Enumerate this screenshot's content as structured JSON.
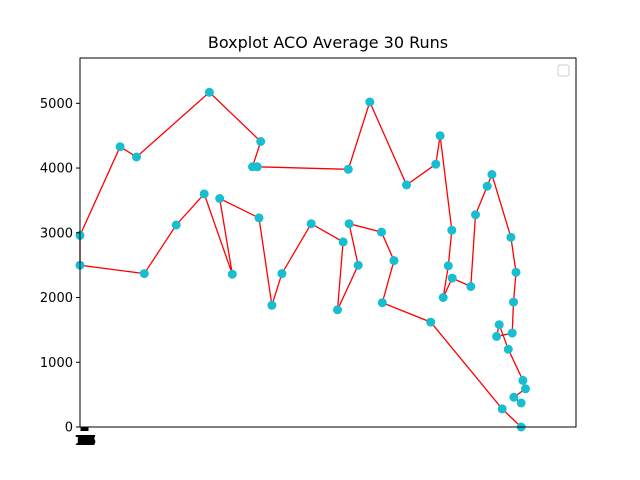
{
  "chart_data": {
    "type": "line",
    "title": "Boxplot ACO Average 30 Runs",
    "xlabel": "",
    "ylabel": "",
    "ylim": [
      0,
      5700
    ],
    "xlim": [
      0,
      11500
    ],
    "yticks": [
      0,
      1000,
      2000,
      3000,
      4000,
      5000
    ],
    "xtick_labels": [
      "0",
      "1",
      "2",
      "3",
      "4",
      "5",
      "6",
      "7",
      "8",
      "9",
      "10",
      "11",
      "12",
      "13",
      "14",
      "15",
      "16",
      "17",
      "18",
      "19",
      "20",
      "21",
      "22",
      "23",
      "24",
      "25",
      "26",
      "27",
      "28",
      "29",
      "30",
      "31",
      "32",
      "33",
      "34",
      "35",
      "36",
      "37",
      "38",
      "39",
      "40",
      "41",
      "42",
      "43",
      "44",
      "45",
      "46",
      "47"
    ],
    "grid": false,
    "legend": {
      "placement": "top-right",
      "entries": []
    },
    "line_color": "#ff0000",
    "marker_color": "#17becf",
    "series": [
      {
        "x": [
          10230,
          9790,
          8130,
          7010,
          7280,
          6990,
          6240,
          6450,
          5970,
          6100,
          5360,
          4680,
          4450,
          4150,
          3240,
          3530,
          2880,
          2230,
          1490,
          0,
          0,
          930,
          1310,
          3000,
          4190,
          4000,
          4110,
          6220,
          6720,
          7570,
          8250,
          8350,
          8620,
          8540,
          8420,
          8630,
          9060,
          9170,
          9440,
          9550,
          9990,
          10110,
          10050,
          10020,
          9660,
          9720,
          9930,
          10270,
          10330,
          10060,
          10230
        ],
        "y": [
          0,
          280,
          1620,
          1920,
          2570,
          3010,
          3140,
          2500,
          1810,
          2860,
          3140,
          2370,
          1880,
          3230,
          3530,
          2360,
          3600,
          3120,
          2370,
          2500,
          2960,
          4330,
          4170,
          5170,
          4410,
          4020,
          4020,
          3980,
          5020,
          3740,
          4060,
          4500,
          3040,
          2490,
          2000,
          2300,
          2170,
          3280,
          3720,
          3900,
          2930,
          2390,
          1930,
          1450,
          1400,
          1580,
          1200,
          720,
          590,
          460,
          370
        ]
      }
    ]
  }
}
